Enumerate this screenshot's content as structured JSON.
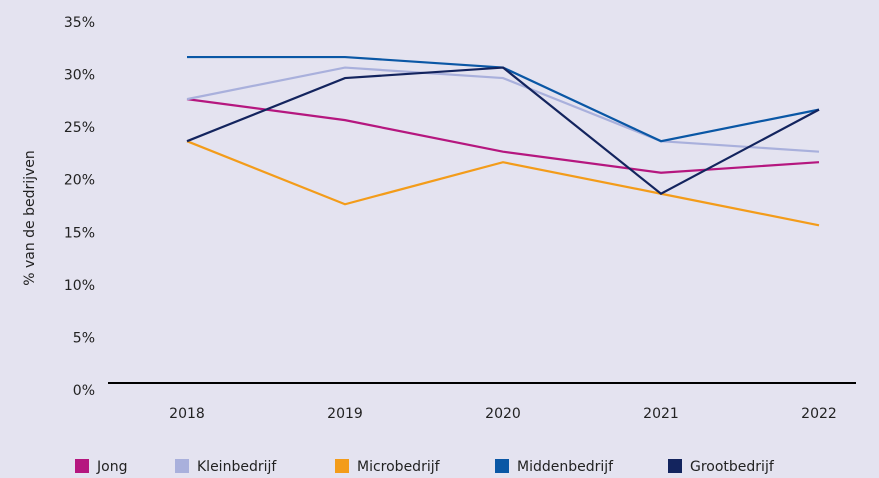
{
  "chart_data": {
    "type": "line",
    "y_label": "% van de bedrijven",
    "categories": [
      "2018",
      "2019",
      "2020",
      "2021",
      "2022"
    ],
    "series": [
      {
        "name": "Jong",
        "color": "#b5177f",
        "values": [
          27,
          25,
          22,
          20,
          21
        ]
      },
      {
        "name": "Kleinbedrijf",
        "color": "#a9b0dc",
        "values": [
          27,
          30,
          29,
          23,
          22
        ]
      },
      {
        "name": "Microbedrijf",
        "color": "#f39c1a",
        "values": [
          23,
          17,
          21,
          18,
          15
        ]
      },
      {
        "name": "Middenbedrijf",
        "color": "#0a57a5",
        "values": [
          31,
          31,
          30,
          23,
          26
        ]
      },
      {
        "name": "Grootbedrijf",
        "color": "#13245e",
        "values": [
          23,
          29,
          30,
          18,
          26
        ]
      }
    ],
    "ylim": [
      0,
      35
    ],
    "yticks": [
      {
        "value": 0,
        "label": "0%"
      },
      {
        "value": 5,
        "label": "5%"
      },
      {
        "value": 10,
        "label": "10%"
      },
      {
        "value": 15,
        "label": "15%"
      },
      {
        "value": 20,
        "label": "20%"
      },
      {
        "value": 25,
        "label": "25%"
      },
      {
        "value": 30,
        "label": "30%"
      },
      {
        "value": 35,
        "label": "35%"
      }
    ],
    "grid": false,
    "legend": "bottom"
  }
}
